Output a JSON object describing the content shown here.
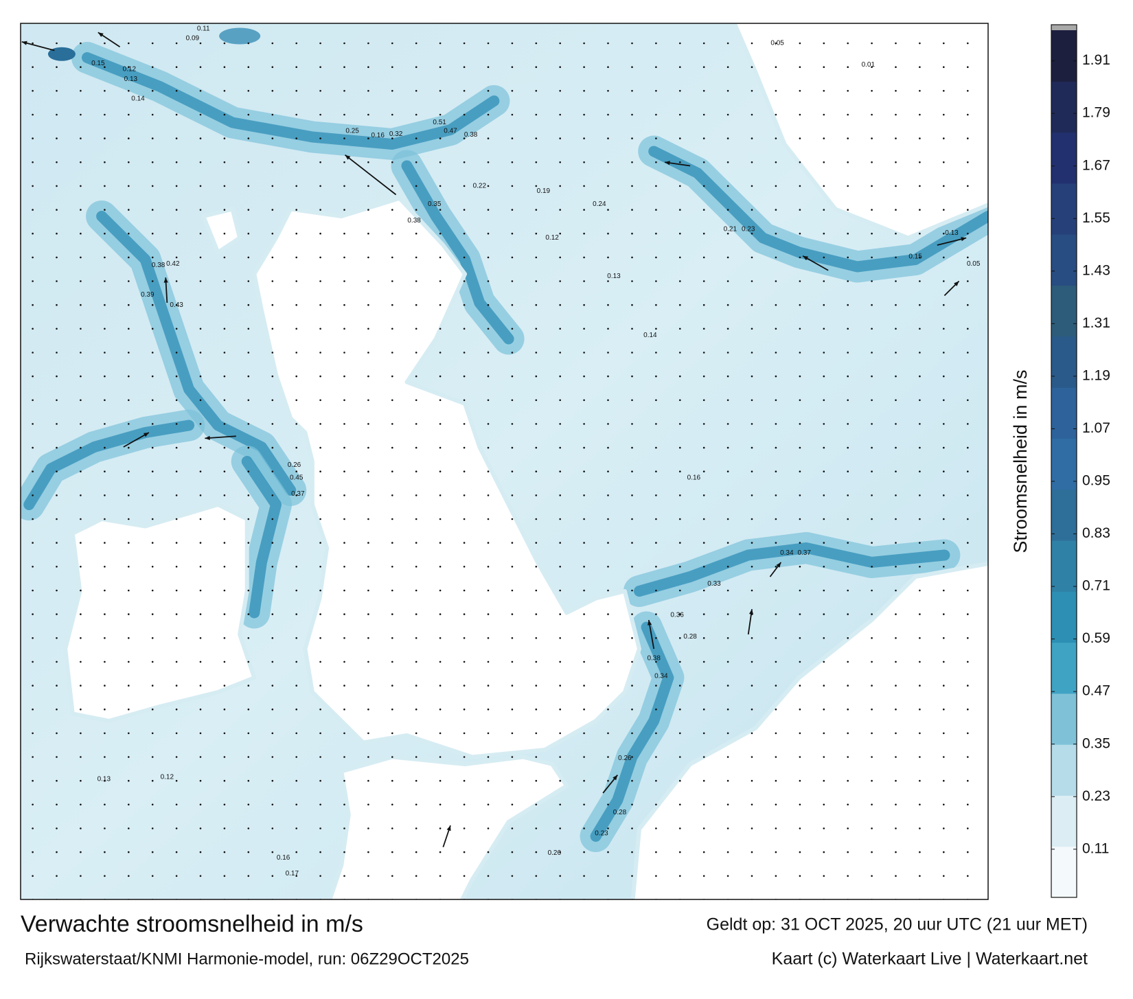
{
  "map": {
    "colorbar": {
      "title": "Stroomsnelheid in m/s",
      "range": [
        0,
        1.98
      ],
      "ticks": [
        0.11,
        0.23,
        0.35,
        0.47,
        0.59,
        0.71,
        0.83,
        0.95,
        1.07,
        1.19,
        1.31,
        1.43,
        1.55,
        1.67,
        1.79,
        1.91
      ],
      "colors": [
        "#f4f9fb",
        "#dcedf4",
        "#b6dce9",
        "#7fc2d8",
        "#3fa3c4",
        "#2c8fb3",
        "#2f81a6",
        "#2d6f99",
        "#2f6da4",
        "#2d629a",
        "#2a5a8a",
        "#2c5c7a",
        "#284d82",
        "#26407a",
        "#233070",
        "#202a58",
        "#1c1f3e"
      ]
    },
    "speed_labels": [
      0.11,
      0.09,
      0.15,
      0.12,
      0.13,
      0.14,
      0.25,
      0.16,
      0.32,
      0.47,
      0.38,
      0.51,
      0.22,
      0.35,
      0.38,
      0.19,
      0.24,
      0.12,
      0.13,
      0.14,
      0.16,
      0.33,
      0.34,
      0.37,
      0.36,
      0.38,
      0.34,
      0.28,
      0.26,
      0.28,
      0.23,
      0.26,
      0.12,
      0.13,
      0.16,
      0.17,
      0.45,
      0.37,
      0.26,
      0.43,
      0.39,
      0.38,
      0.42,
      0.05,
      0.13,
      0.15,
      0.01,
      0.05,
      0.21,
      0.23
    ]
  },
  "footer": {
    "title": "Verwachte stroomsnelheid in m/s",
    "subtitle": "Rijkswaterstaat/KNMI Harmonie-model, run: 06Z29OCT2025",
    "valid": "Geldt op: 31 OCT 2025, 20 uur UTC (21 uur MET)",
    "credit": "Kaart (c) Waterkaart Live | Waterkaart.net"
  }
}
